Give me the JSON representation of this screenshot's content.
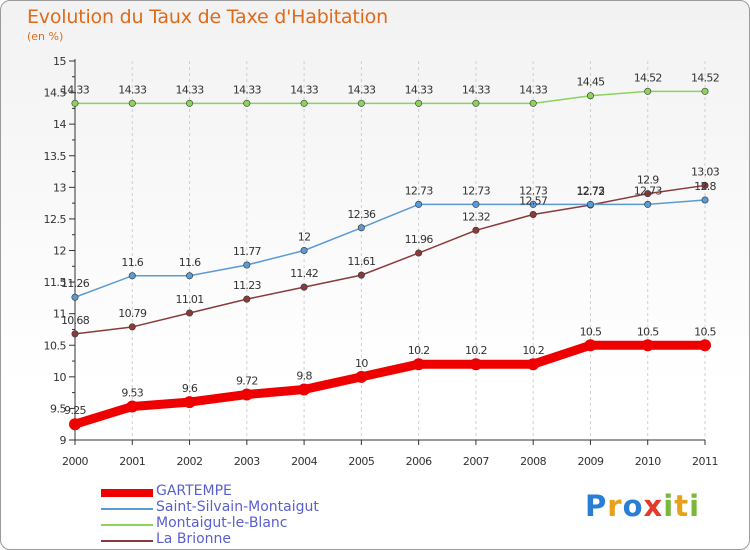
{
  "chart_data": {
    "type": "line",
    "title": "Evolution du Taux de Taxe d'Habitation",
    "ylabel": "(en %)",
    "ylim": [
      9,
      15
    ],
    "yticks": [
      "9",
      "9.5",
      "10",
      "10.5",
      "11",
      "11.5",
      "12",
      "12.5",
      "13",
      "13.5",
      "14",
      "14.5",
      "15"
    ],
    "x": [
      "2000",
      "2001",
      "2002",
      "2003",
      "2004",
      "2005",
      "2006",
      "2007",
      "2008",
      "2009",
      "2010",
      "2011"
    ],
    "series": [
      {
        "name": "GARTEMPE",
        "color": "#ee0000",
        "values": [
          9.25,
          9.53,
          9.6,
          9.72,
          9.8,
          10,
          10.2,
          10.2,
          10.2,
          10.5,
          10.5,
          10.5
        ],
        "labels": [
          "9.25",
          "9.53",
          "9.6",
          "9.72",
          "9.8",
          "10",
          "10.2",
          "10.2",
          "10.2",
          "10.5",
          "10.5",
          "10.5"
        ]
      },
      {
        "name": "Saint-Silvain-Montaigut",
        "color": "#5b9bd5",
        "values": [
          11.26,
          11.6,
          11.6,
          11.77,
          12,
          12.36,
          12.73,
          12.73,
          12.73,
          12.73,
          12.73,
          12.8
        ],
        "labels": [
          "11.26",
          "11.6",
          "11.6",
          "11.77",
          "12",
          "12.36",
          "12.73",
          "12.73",
          "12.73",
          "12.73",
          "12.73",
          "12.8"
        ]
      },
      {
        "name": "Montaigut-le-Blanc",
        "color": "#8bd35a",
        "values": [
          14.33,
          14.33,
          14.33,
          14.33,
          14.33,
          14.33,
          14.33,
          14.33,
          14.33,
          14.45,
          14.52,
          14.52
        ],
        "labels": [
          "14.33",
          "14.33",
          "14.33",
          "14.33",
          "14.33",
          "14.33",
          "14.33",
          "14.33",
          "14.33",
          "14.45",
          "14.52",
          "14.52"
        ]
      },
      {
        "name": "La Brionne",
        "color": "#8b3a3a",
        "values": [
          10.68,
          10.79,
          11.01,
          11.23,
          11.42,
          11.61,
          11.96,
          12.32,
          12.57,
          12.72,
          12.9,
          13.03
        ],
        "labels": [
          "10.68",
          "10.79",
          "11.01",
          "11.23",
          "11.42",
          "11.61",
          "11.96",
          "12.32",
          "12.57",
          "12.72",
          "12.9",
          "13.03"
        ]
      }
    ],
    "grid": "vertical",
    "legend": "bottom-left"
  },
  "brand": {
    "letters": [
      "P",
      "r",
      "o",
      "x",
      "i",
      "t",
      "i"
    ],
    "colors": [
      "#2a7fd4",
      "#e8a21a",
      "#2a7fd4",
      "#e33b2b",
      "#7ab83a",
      "#e8a21a",
      "#7ab83a"
    ]
  }
}
